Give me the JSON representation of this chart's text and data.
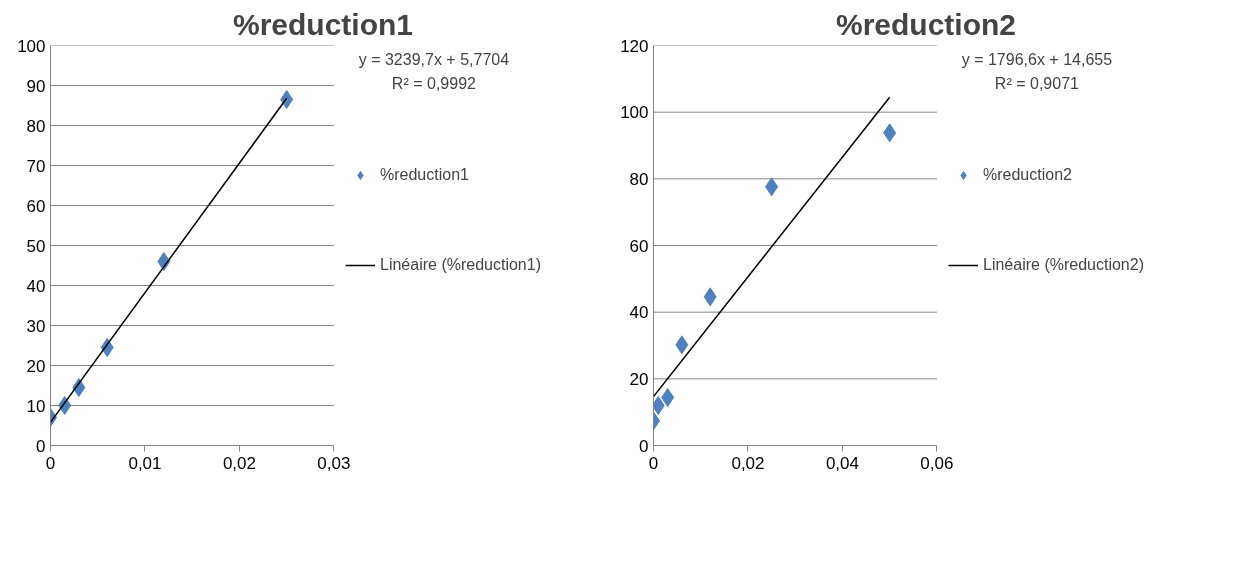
{
  "chart_data": [
    {
      "type": "scatter",
      "title": "%reduction1",
      "xlim": [
        0,
        0.03
      ],
      "ylim": [
        0,
        100
      ],
      "xticks": [
        0,
        {
          "value": 0.01,
          "label": "0,01"
        },
        {
          "value": 0.02,
          "label": "0,02"
        },
        {
          "value": 0.03,
          "label": "0,03"
        }
      ],
      "yticks": [
        0,
        10,
        20,
        30,
        40,
        50,
        60,
        70,
        80,
        90,
        100
      ],
      "grid": "y",
      "legend": "right",
      "annotations": [
        "y = 3239,7x + 5,7704",
        "R² = 0,9992"
      ],
      "series": [
        {
          "name": "%reduction1",
          "color": "#4f81bd",
          "marker": "diamond",
          "x": [
            0,
            0.0015,
            0.003,
            0.006,
            0.012,
            0.025
          ],
          "values": [
            7,
            10,
            14.5,
            24.5,
            46,
            86.5
          ]
        },
        {
          "name": "Linéaire (%reduction1)",
          "type": "line",
          "color": "#000000",
          "x": [
            0,
            0.025
          ],
          "values": [
            5.8,
            86.8
          ]
        }
      ]
    },
    {
      "type": "scatter",
      "title": "%reduction2",
      "xlim": [
        0,
        0.06
      ],
      "ylim": [
        0,
        120
      ],
      "xticks": [
        0,
        {
          "value": 0.02,
          "label": "0,02"
        },
        {
          "value": 0.04,
          "label": "0,04"
        },
        {
          "value": 0.06,
          "label": "0,06"
        }
      ],
      "yticks": [
        0,
        20,
        40,
        60,
        80,
        100,
        120
      ],
      "grid": "y",
      "legend": "right",
      "annotations": [
        "y = 1796,6x + 14,655",
        "R² = 0,9071"
      ],
      "series": [
        {
          "name": "%reduction2",
          "color": "#4f81bd",
          "marker": "diamond",
          "x": [
            0,
            0.001,
            0.003,
            0.006,
            0.012,
            0.025,
            0.05
          ],
          "values": [
            7.4,
            12,
            14.4,
            30.2,
            44.6,
            77.6,
            93.8
          ]
        },
        {
          "name": "Linéaire (%reduction2)",
          "type": "line",
          "color": "#000000",
          "x": [
            0,
            0.05
          ],
          "values": [
            14.7,
            104.5
          ]
        }
      ]
    }
  ]
}
